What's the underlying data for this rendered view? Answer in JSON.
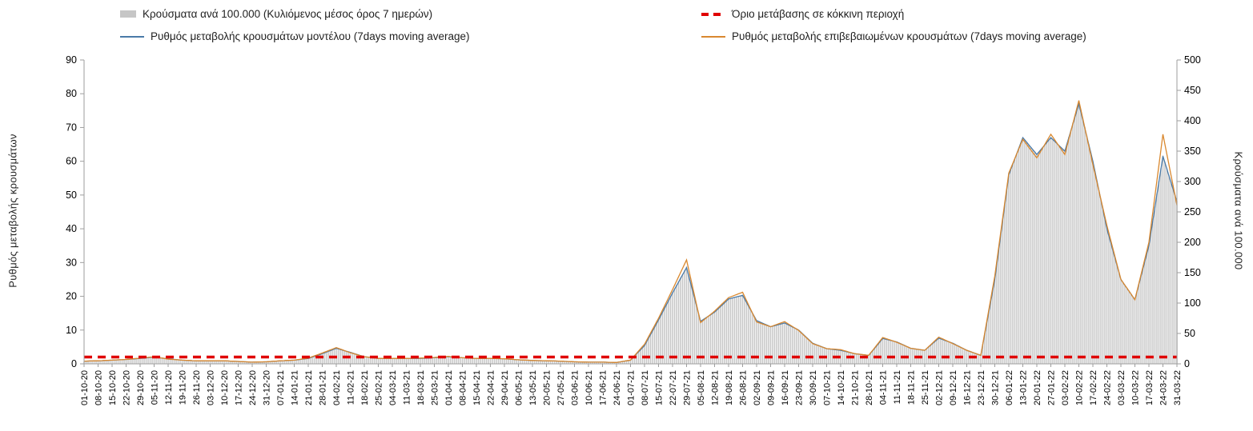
{
  "legend": {
    "items": [
      {
        "label": "Κρούσματα ανά 100.000 (Κυλιόμενος μέσος όρος 7 ημερών)",
        "swatch": "bar"
      },
      {
        "label": "Όριο μετάβασης σε κόκκινη περιοχή",
        "swatch": "dash"
      },
      {
        "label": "Ρυθμός μεταβολής κρουσμάτων μοντέλου (7days moving average)",
        "swatch": "line-model"
      },
      {
        "label": "Ρυθμός μεταβολής επιβεβαιωμένων κρουσμάτων (7days moving average)",
        "swatch": "line-confirmed"
      }
    ]
  },
  "chart_data": {
    "type": "combo-bar-line",
    "title": "",
    "left_axis": {
      "label": "Ρυθμός μεταβολής κρουσμάτων",
      "min": 0,
      "max": 90,
      "tick_step": 10
    },
    "right_axis": {
      "label": "Κρούσματα ανά 100.000",
      "min": 0,
      "max": 500,
      "tick_step": 50
    },
    "threshold": {
      "name": "Όριο μετάβασης σε κόκκινη περιοχή",
      "value_left_axis": 2,
      "color": "#e00000"
    },
    "x_tick_labels": [
      "01-10-20",
      "08-10-20",
      "15-10-20",
      "22-10-20",
      "29-10-20",
      "05-11-20",
      "12-11-20",
      "19-11-20",
      "26-11-20",
      "03-12-20",
      "10-12-20",
      "17-12-20",
      "24-12-20",
      "31-12-20",
      "07-01-21",
      "14-01-21",
      "21-01-21",
      "28-01-21",
      "04-02-21",
      "11-02-21",
      "18-02-21",
      "25-02-21",
      "04-03-21",
      "11-03-21",
      "18-03-21",
      "25-03-21",
      "01-04-21",
      "08-04-21",
      "15-04-21",
      "22-04-21",
      "29-04-21",
      "06-05-21",
      "13-05-21",
      "20-05-21",
      "27-05-21",
      "03-06-21",
      "10-06-21",
      "17-06-21",
      "24-06-21",
      "01-07-21",
      "08-07-21",
      "15-07-21",
      "22-07-21",
      "29-07-21",
      "05-08-21",
      "12-08-21",
      "19-08-21",
      "26-08-21",
      "02-09-21",
      "09-09-21",
      "16-09-21",
      "23-09-21",
      "30-09-21",
      "07-10-21",
      "14-10-21",
      "21-10-21",
      "28-10-21",
      "04-11-21",
      "11-11-21",
      "18-11-21",
      "25-11-21",
      "02-12-21",
      "09-12-21",
      "16-12-21",
      "23-12-21",
      "30-12-21",
      "06-01-22",
      "13-01-22",
      "20-01-22",
      "27-01-22",
      "03-02-22",
      "10-02-22",
      "17-02-22",
      "24-02-22",
      "03-03-22",
      "10-03-22",
      "17-03-22",
      "24-03-22",
      "31-03-22"
    ],
    "series": [
      {
        "name": "Κρούσματα ανά 100.000 (Κυλιόμενος μέσος όρος 7 ημερών)",
        "type": "bar",
        "axis": "right",
        "color": "#c6c6c6",
        "values": [
          4,
          5,
          6,
          7,
          9,
          11,
          8,
          6,
          5,
          5,
          5,
          4,
          3,
          3,
          5,
          6,
          9,
          17,
          26,
          19,
          12,
          9,
          9,
          9,
          9,
          10,
          12,
          10,
          9,
          9,
          8,
          7,
          6,
          5,
          4,
          3,
          3,
          3,
          2,
          6,
          30,
          73,
          118,
          160,
          70,
          85,
          107,
          113,
          71,
          61,
          68,
          55,
          34,
          25,
          22,
          17,
          14,
          42,
          36,
          25,
          22,
          43,
          34,
          22,
          14,
          140,
          310,
          372,
          345,
          372,
          350,
          432,
          333,
          222,
          139,
          105,
          196,
          343,
          268
        ]
      },
      {
        "name": "Ρυθμός μεταβολής κρουσμάτων μοντέλου (7days moving average)",
        "type": "line",
        "axis": "left",
        "color": "#4a7aa8",
        "values": [
          0.8,
          0.9,
          1.1,
          1.3,
          1.6,
          2.0,
          1.5,
          1.1,
          0.9,
          0.9,
          0.9,
          0.7,
          0.5,
          0.6,
          0.9,
          1.1,
          1.6,
          3.0,
          4.6,
          3.4,
          2.1,
          1.6,
          1.6,
          1.6,
          1.6,
          1.8,
          2.1,
          1.8,
          1.6,
          1.6,
          1.5,
          1.2,
          1.0,
          0.9,
          0.8,
          0.6,
          0.5,
          0.5,
          0.4,
          1.1,
          5.4,
          13.0,
          21.0,
          28.5,
          12.6,
          15.3,
          19.2,
          20.3,
          12.8,
          11.0,
          12.1,
          10.0,
          6.1,
          4.5,
          4.0,
          3.0,
          2.5,
          7.5,
          6.5,
          4.6,
          4.0,
          7.6,
          6.1,
          4.0,
          2.5,
          25.0,
          56.0,
          67.0,
          62.0,
          67.0,
          63.0,
          77.0,
          60.0,
          40.0,
          25.0,
          19.0,
          35.0,
          61.5,
          48.0
        ]
      },
      {
        "name": "Ρυθμός μεταβολής επιβεβαιωμένων κρουσμάτων (7days moving average)",
        "type": "line",
        "axis": "left",
        "color": "#d9882f",
        "values": [
          0.8,
          0.9,
          1.1,
          1.3,
          1.7,
          2.1,
          1.4,
          1.1,
          0.9,
          0.9,
          0.9,
          0.7,
          0.5,
          0.6,
          0.9,
          1.1,
          1.7,
          3.2,
          4.8,
          3.3,
          2.1,
          1.6,
          1.6,
          1.6,
          1.7,
          1.9,
          2.2,
          1.8,
          1.6,
          1.6,
          1.5,
          1.2,
          1.0,
          0.9,
          0.8,
          0.6,
          0.5,
          0.5,
          0.4,
          1.1,
          5.8,
          13.5,
          22.0,
          30.8,
          12.2,
          15.6,
          19.6,
          21.2,
          12.4,
          11.0,
          12.5,
          9.9,
          6.0,
          4.5,
          4.2,
          3.0,
          2.5,
          7.8,
          6.4,
          4.6,
          4.0,
          7.9,
          6.0,
          4.0,
          2.5,
          26.0,
          56.5,
          66.5,
          61.0,
          68.0,
          62.0,
          78.0,
          59.0,
          41.0,
          25.0,
          19.0,
          36.0,
          68.0,
          47.0
        ]
      }
    ]
  }
}
